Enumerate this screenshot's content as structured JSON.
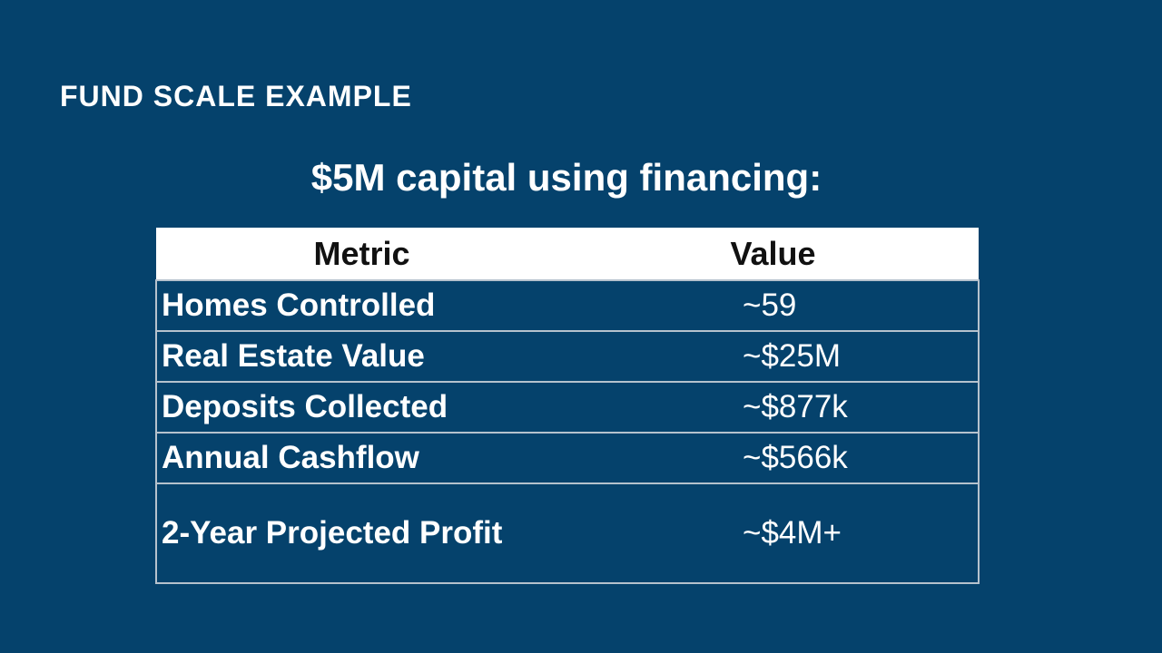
{
  "slide": {
    "title": "FUND SCALE EXAMPLE",
    "subtitle": "$5M capital using financing:"
  },
  "table": {
    "columns": [
      "Metric",
      "Value"
    ],
    "rows": [
      {
        "metric": "Homes Controlled",
        "value": "~59"
      },
      {
        "metric": "Real Estate Value",
        "value": "~$25M"
      },
      {
        "metric": "Deposits Collected",
        "value": "~$877k"
      },
      {
        "metric": "Annual Cashflow",
        "value": "~$566k"
      },
      {
        "metric": "2-Year Projected Profit",
        "value": "~$4M+"
      }
    ]
  },
  "colors": {
    "background": "#05426C",
    "header_bg": "#FFFFFF",
    "header_text": "#111111",
    "body_text": "#FFFFFF",
    "border": "#B6C2CD"
  }
}
